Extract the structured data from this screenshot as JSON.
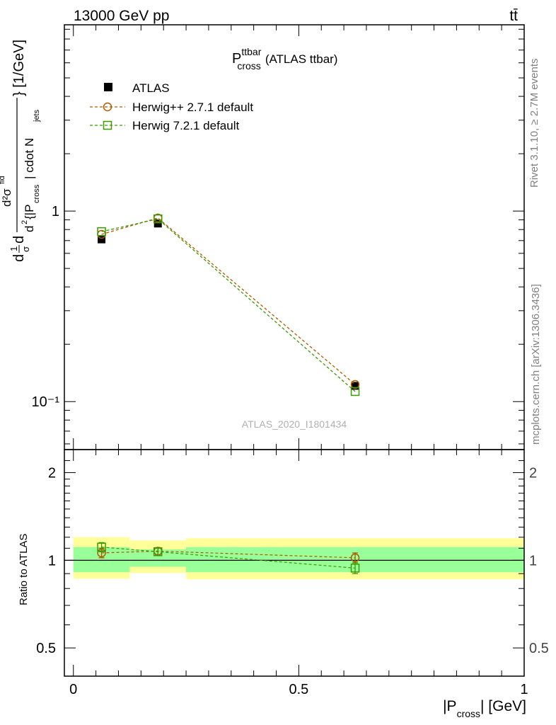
{
  "header": {
    "energy_label": "13000 GeV pp",
    "process_label": "tt̄"
  },
  "side_labels": {
    "rivet": "Rivet 3.1.10, ≥ 2.7M events",
    "mcplots": "mcplots.cern.ch [arXiv:1306.3436]"
  },
  "main_panel": {
    "title_main": "P",
    "title_sup": "ttbar",
    "title_sub": "cross",
    "title_suffix": "(ATLAS ttbar)",
    "watermark": "ATLAS_2020_I1801434",
    "ylabel": {
      "pre": "d",
      "frac_top": "1",
      "frac_bot": "σ",
      "d_after": "d",
      "inner_num": "d²σ",
      "inner_num_sup": "fid",
      "inner_den_pre": "d",
      "inner_den_sup": "2",
      "inner_den_mid": "{|P",
      "inner_den_sub": "cross",
      "inner_den_end": "| cdot N",
      "inner_den_sub2": "jets",
      "unit": "} [1/GeV]"
    }
  },
  "ratio_panel": {
    "ylabel": "Ratio to ATLAS"
  },
  "xaxis": {
    "label_pre": "|P",
    "label_sub": "cross",
    "label_post": "| [GeV]"
  },
  "chart_data": [
    {
      "type": "line",
      "panel": "main",
      "xlim": [
        -0.02,
        1.0
      ],
      "ylim": [
        0.056,
        9.5
      ],
      "yscale": "log",
      "ytick_labels": [
        "10⁻¹",
        "1"
      ],
      "ytick_values": [
        0.1,
        1.0
      ],
      "legend_position": "top-left",
      "bins": [
        [
          0.0,
          0.125
        ],
        [
          0.125,
          0.25
        ],
        [
          0.25,
          1.0
        ]
      ],
      "series": [
        {
          "name": "ATLAS",
          "style": "data",
          "color": "#000000",
          "x": [
            0.0625,
            0.1875,
            0.625
          ],
          "y": [
            0.71,
            0.86,
            0.121
          ]
        },
        {
          "name": "Herwig++ 2.7.1 default",
          "style": "circle-dashed",
          "color": "#b05a00",
          "x": [
            0.0625,
            0.1875,
            0.625
          ],
          "y": [
            0.755,
            0.92,
            0.123
          ]
        },
        {
          "name": "Herwig 7.2.1 default",
          "style": "square-dashed",
          "color": "#3a9a00",
          "x": [
            0.0625,
            0.1875,
            0.625
          ],
          "y": [
            0.78,
            0.91,
            0.113
          ]
        }
      ]
    },
    {
      "type": "line",
      "panel": "ratio",
      "xlim": [
        -0.02,
        1.0
      ],
      "ylim": [
        0.4,
        2.4
      ],
      "yscale": "log",
      "ytick_labels": [
        "0.5",
        "1",
        "2"
      ],
      "ytick_values": [
        0.5,
        1.0,
        2.0
      ],
      "xtick_labels": [
        "0",
        "0.5",
        "1"
      ],
      "xtick_values": [
        0,
        0.5,
        1.0
      ],
      "bands": {
        "stat_color": "#99ff99",
        "total_color": "#ffff99",
        "bins": [
          [
            0.0,
            0.125
          ],
          [
            0.125,
            0.25
          ],
          [
            0.25,
            1.0
          ]
        ],
        "stat_low": [
          0.91,
          0.95,
          0.91
        ],
        "stat_high": [
          1.11,
          1.09,
          1.11
        ],
        "total_low": [
          0.865,
          0.905,
          0.86
        ],
        "total_high": [
          1.2,
          1.17,
          1.19
        ]
      },
      "series": [
        {
          "name": "Herwig++ 2.7.1 default",
          "color": "#b05a00",
          "marker": "circle",
          "x": [
            0.0625,
            0.1875,
            0.625
          ],
          "y": [
            1.06,
            1.075,
            1.02
          ],
          "err": [
            0.04,
            0.03,
            0.04
          ]
        },
        {
          "name": "Herwig 7.2.1 default",
          "color": "#3a9a00",
          "marker": "square",
          "x": [
            0.0625,
            0.1875,
            0.625
          ],
          "y": [
            1.11,
            1.07,
            0.94
          ],
          "err": [
            0.04,
            0.03,
            0.04
          ]
        }
      ]
    }
  ]
}
